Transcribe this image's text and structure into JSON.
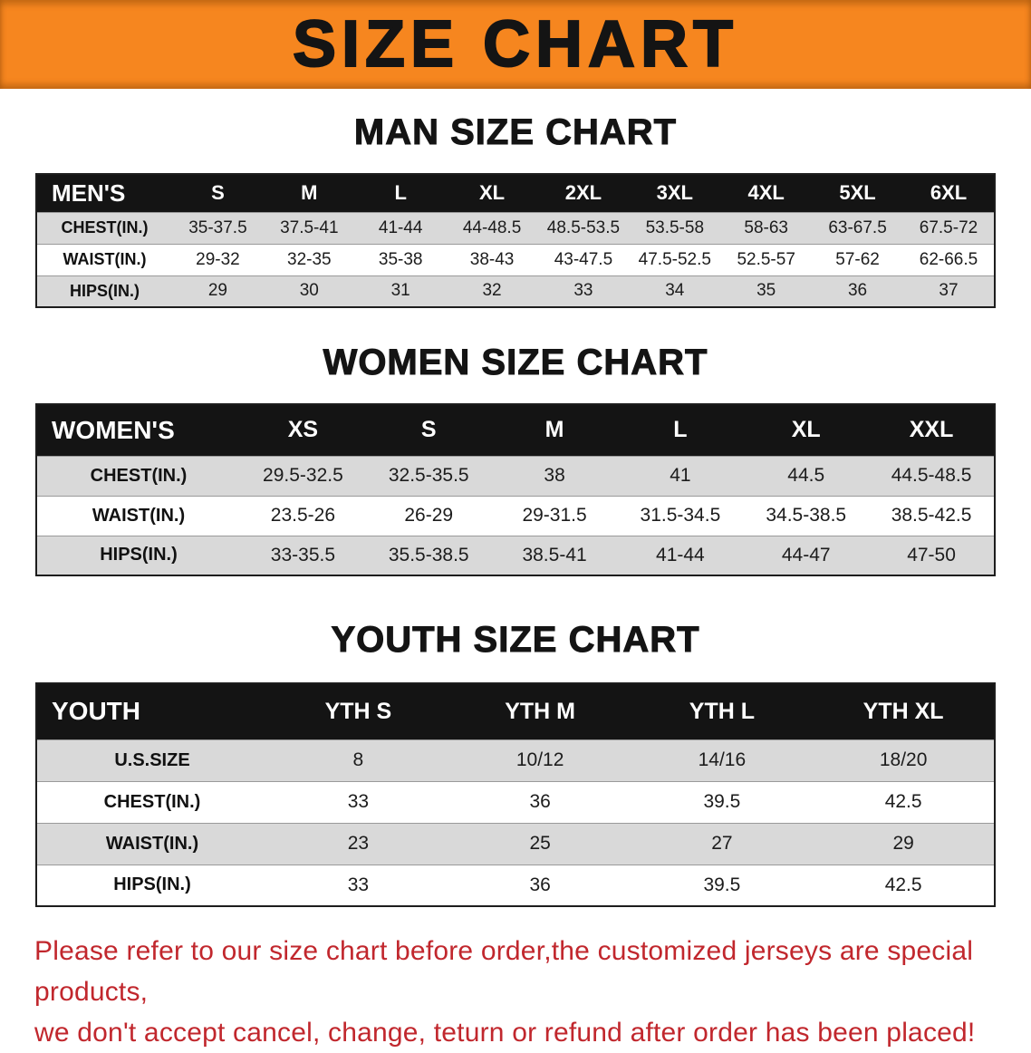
{
  "banner": {
    "title": "SIZE CHART",
    "bg_color": "#F6861F",
    "text_color": "#141414"
  },
  "sections": [
    {
      "heading": "MAN SIZE CHART",
      "table": {
        "header": [
          "MEN'S",
          "S",
          "M",
          "L",
          "XL",
          "2XL",
          "3XL",
          "4XL",
          "5XL",
          "6XL"
        ],
        "rows": [
          [
            "CHEST(IN.)",
            "35-37.5",
            "37.5-41",
            "41-44",
            "44-48.5",
            "48.5-53.5",
            "53.5-58",
            "58-63",
            "63-67.5",
            "67.5-72"
          ],
          [
            "WAIST(IN.)",
            "29-32",
            "32-35",
            "35-38",
            "38-43",
            "43-47.5",
            "47.5-52.5",
            "52.5-57",
            "57-62",
            "62-66.5"
          ],
          [
            "HIPS(IN.)",
            "29",
            "30",
            "31",
            "32",
            "33",
            "34",
            "35",
            "36",
            "37"
          ]
        ]
      }
    },
    {
      "heading": "WOMEN SIZE CHART",
      "table": {
        "header": [
          "WOMEN'S",
          "XS",
          "S",
          "M",
          "L",
          "XL",
          "XXL"
        ],
        "rows": [
          [
            "CHEST(IN.)",
            "29.5-32.5",
            "32.5-35.5",
            "38",
            "41",
            "44.5",
            "44.5-48.5"
          ],
          [
            "WAIST(IN.)",
            "23.5-26",
            "26-29",
            "29-31.5",
            "31.5-34.5",
            "34.5-38.5",
            "38.5-42.5"
          ],
          [
            "HIPS(IN.)",
            "33-35.5",
            "35.5-38.5",
            "38.5-41",
            "41-44",
            "44-47",
            "47-50"
          ]
        ]
      }
    },
    {
      "heading": "YOUTH SIZE CHART",
      "table": {
        "header": [
          "YOUTH",
          "YTH S",
          "YTH M",
          "YTH L",
          "YTH XL"
        ],
        "rows": [
          [
            "U.S.SIZE",
            "8",
            "10/12",
            "14/16",
            "18/20"
          ],
          [
            "CHEST(IN.)",
            "33",
            "36",
            "39.5",
            "42.5"
          ],
          [
            "WAIST(IN.)",
            "23",
            "25",
            "27",
            "29"
          ],
          [
            "HIPS(IN.)",
            "33",
            "36",
            "39.5",
            "42.5"
          ]
        ]
      }
    }
  ],
  "footer": {
    "line1": "Please refer to our size chart before order,the customized jerseys are special products,",
    "line2": "we don't accept cancel, change, teturn or refund after order has been placed!",
    "text_color": "#C1272D"
  },
  "colors": {
    "table_header_bg": "#141414",
    "row_stripe": "#d9d9d9"
  }
}
